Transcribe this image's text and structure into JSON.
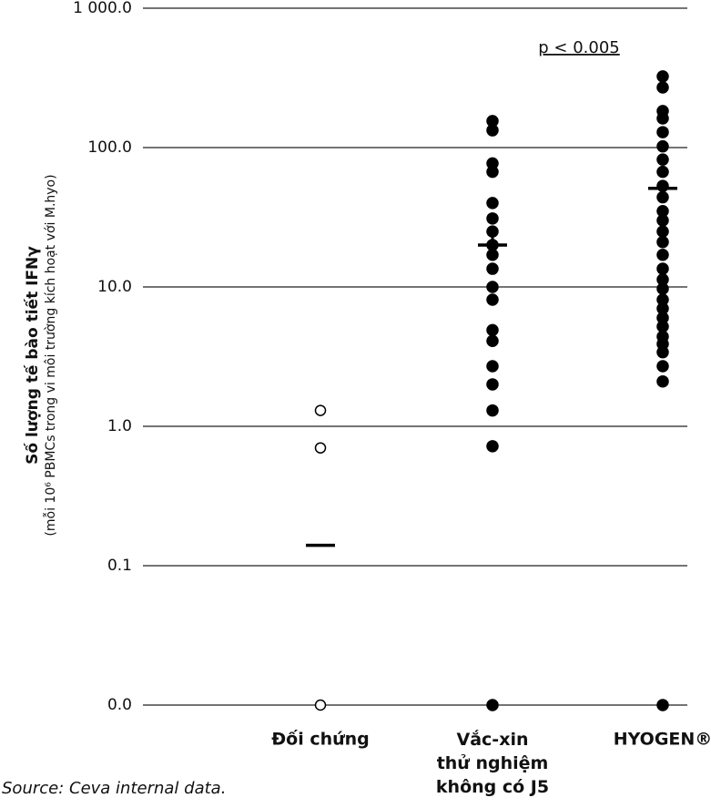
{
  "chart_data": {
    "type": "dot",
    "y_title": "Số lượng tế bào tiết IFNγ",
    "y_subtitle": "(mỗi 10⁶ PBMCs trong vi môi trường kích hoạt với M.hyo)",
    "annotation": "p < 0.005",
    "source": "Source: Ceva internal data.",
    "log_scale": true,
    "grid": true,
    "ylim": [
      0.01,
      1000
    ],
    "yticks": [
      {
        "value": 0.01,
        "label": "0.0"
      },
      0.1,
      {
        "value": 1,
        "label": "1.0"
      },
      {
        "value": 10,
        "label": "10.0"
      },
      {
        "value": 100,
        "label": "100.0"
      },
      {
        "value": 1000,
        "label": "1 000.0"
      }
    ],
    "categories": [
      "Đối chứng",
      "Vắc-xin\nthử nghiệm\nkhông có J5",
      "HYOGEN®"
    ],
    "category_colors": [
      "#000000",
      "#000000",
      "#9b3b8e"
    ],
    "markers": [
      "open",
      "filled",
      "filled"
    ],
    "color": "#000000",
    "values": [
      [
        1.3,
        0.7,
        0.01
      ],
      [
        155,
        133,
        77,
        67,
        40,
        31,
        25,
        20,
        17,
        13.5,
        10,
        8.1,
        4.9,
        4.1,
        2.7,
        2.0,
        1.3,
        0.72,
        0.01
      ],
      [
        324,
        270,
        183,
        162,
        129,
        102,
        82,
        67,
        53,
        44,
        35,
        30,
        25,
        21,
        17,
        13.5,
        11.3,
        9.7,
        8.1,
        7.0,
        6.0,
        5.2,
        4.4,
        3.9,
        3.4,
        2.7,
        2.1,
        0.01
      ]
    ],
    "means": [
      0.14,
      20,
      51
    ]
  }
}
